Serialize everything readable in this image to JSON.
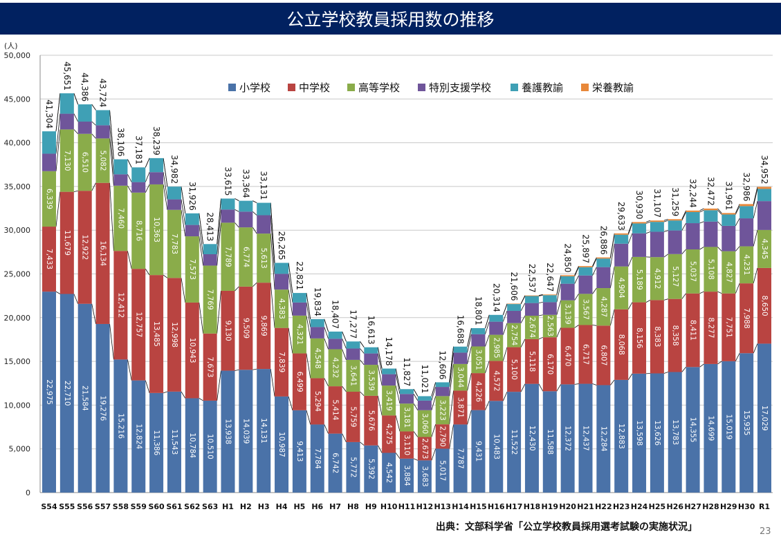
{
  "header": {
    "title": "公立学校教員採用数の推移"
  },
  "footer": {
    "source": "出典：文部科学省「公立学校教員採用選考試験の実施状況」",
    "page": "23"
  },
  "chart_data": {
    "type": "bar",
    "stacked": true,
    "title": "公立学校教員採用数の推移",
    "ylabel": "(人)",
    "ylim": [
      0,
      50000
    ],
    "yticks": [
      0,
      5000,
      10000,
      15000,
      20000,
      25000,
      30000,
      35000,
      40000,
      45000,
      50000
    ],
    "ytick_labels": [
      "0",
      "5,000",
      "10,000",
      "15,000",
      "20,000",
      "25,000",
      "30,000",
      "35,000",
      "40,000",
      "45,000",
      "50,000"
    ],
    "grid": true,
    "legend_position": "top-right",
    "categories": [
      "S54",
      "S55",
      "S56",
      "S57",
      "S58",
      "S59",
      "S60",
      "S61",
      "S62",
      "S63",
      "H1",
      "H2",
      "H3",
      "H4",
      "H5",
      "H6",
      "H7",
      "H8",
      "H9",
      "H10",
      "H11",
      "H12",
      "H13",
      "H14",
      "H15",
      "H16",
      "H17",
      "H18",
      "H19",
      "H20",
      "H21",
      "H22",
      "H23",
      "H24",
      "H25",
      "H26",
      "H27",
      "H28",
      "H29",
      "H30",
      "R1"
    ],
    "totals": [
      41304,
      45651,
      44386,
      43724,
      38106,
      37181,
      38239,
      34982,
      31926,
      28413,
      33615,
      33364,
      33131,
      26265,
      22821,
      19834,
      18407,
      17277,
      16613,
      14178,
      11827,
      11021,
      12606,
      16688,
      18801,
      20314,
      21606,
      22537,
      22647,
      24850,
      25897,
      26886,
      29633,
      30930,
      31107,
      31259,
      32244,
      32472,
      31961,
      32986,
      34952
    ],
    "series": [
      {
        "name": "小学校",
        "color": "#4a72a8",
        "labeled": true,
        "values": [
          22975,
          22710,
          21584,
          19276,
          15216,
          12824,
          11386,
          11543,
          10784,
          10510,
          13938,
          14039,
          14131,
          10987,
          9413,
          7784,
          6742,
          5772,
          5392,
          4542,
          3884,
          3683,
          5017,
          7787,
          9431,
          10483,
          11522,
          12430,
          11588,
          12372,
          12437,
          12284,
          12883,
          13598,
          13626,
          13783,
          14355,
          14699,
          15019,
          15935,
          17029
        ]
      },
      {
        "name": "中学校",
        "color": "#b94441",
        "labeled": true,
        "values": [
          7433,
          11679,
          12922,
          16134,
          12412,
          12757,
          13485,
          12998,
          10943,
          7673,
          9130,
          9509,
          9869,
          7839,
          6499,
          5294,
          5414,
          5759,
          5676,
          4275,
          3110,
          2673,
          2790,
          3871,
          4226,
          4572,
          5100,
          5118,
          6170,
          6470,
          6717,
          6807,
          8068,
          8156,
          8383,
          8358,
          8411,
          8277,
          7751,
          7988,
          8650
        ]
      },
      {
        "name": "高等学校",
        "color": "#8aac4a",
        "labeled": true,
        "values": [
          6339,
          7130,
          6510,
          5082,
          7460,
          8716,
          10363,
          7783,
          7573,
          7769,
          7789,
          6774,
          5613,
          4383,
          4321,
          4548,
          4232,
          3641,
          3539,
          3419,
          3181,
          3060,
          3223,
          3044,
          3051,
          2985,
          2754,
          2674,
          2563,
          3139,
          3567,
          4287,
          4904,
          5189,
          4912,
          5127,
          5037,
          5108,
          4827,
          4231,
          4345
        ]
      },
      {
        "name": "特別支援学校",
        "color": "#6f559a",
        "labeled": false,
        "values": [
          2000,
          1800,
          1400,
          1500,
          1300,
          1200,
          1400,
          1200,
          1300,
          1300,
          1500,
          1800,
          2100,
          1800,
          1500,
          1300,
          1200,
          1300,
          1300,
          1300,
          1100,
          1100,
          1050,
          1300,
          1400,
          1500,
          1400,
          1450,
          1450,
          1900,
          2100,
          2400,
          2600,
          2700,
          2900,
          2700,
          3000,
          2900,
          2900,
          3200,
          3300
        ]
      },
      {
        "name": "養護教諭",
        "color": "#3fa0b5",
        "labeled": false,
        "values": [
          2557,
          2332,
          1970,
          1732,
          1718,
          1684,
          1605,
          1458,
          1326,
          1161,
          1258,
          1242,
          1418,
          1256,
          1088,
          908,
          819,
          805,
          706,
          642,
          552,
          505,
          526,
          686,
          693,
          774,
          780,
          800,
          800,
          850,
          950,
          980,
          1030,
          1130,
          1130,
          1140,
          1270,
          1300,
          1300,
          1400,
          1400
        ]
      },
      {
        "name": "栄養教諭",
        "color": "#e8883a",
        "labeled": false,
        "values": [
          0,
          0,
          0,
          0,
          0,
          0,
          0,
          0,
          0,
          0,
          0,
          0,
          0,
          0,
          0,
          0,
          0,
          0,
          0,
          0,
          0,
          0,
          0,
          0,
          0,
          0,
          50,
          65,
          76,
          119,
          126,
          128,
          148,
          157,
          156,
          151,
          171,
          188,
          164,
          232,
          228
        ]
      }
    ]
  }
}
